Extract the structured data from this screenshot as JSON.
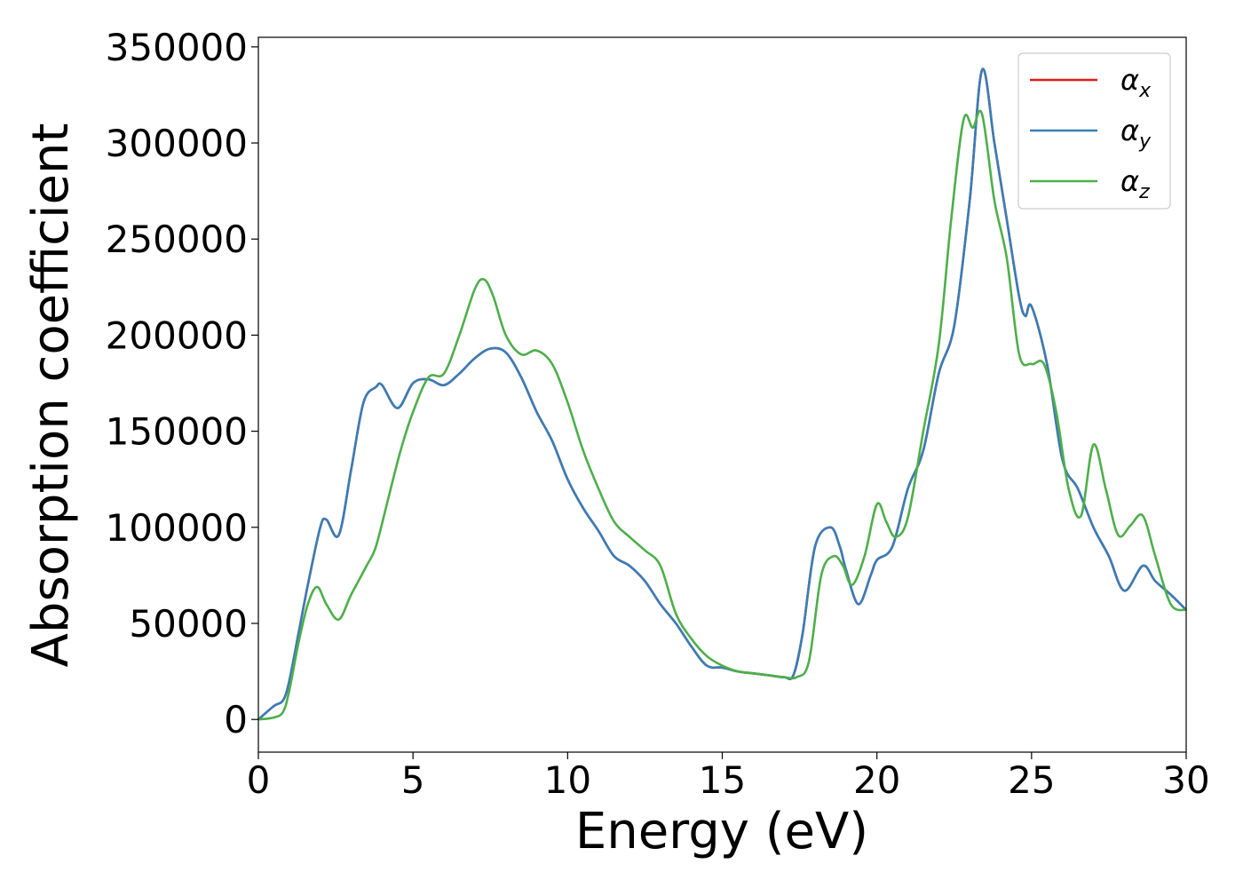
{
  "chart_data": {
    "type": "line",
    "xlabel": "Energy (eV)",
    "ylabel": "Absorption coefficient",
    "xlim": [
      0,
      30
    ],
    "ylim": [
      -17000,
      355000
    ],
    "xticks": [
      0,
      5,
      10,
      15,
      20,
      25,
      30
    ],
    "yticks": [
      0,
      50000,
      100000,
      150000,
      200000,
      250000,
      300000,
      350000
    ],
    "grid": false,
    "legend_position": "top-right",
    "series": [
      {
        "name": "α_x",
        "color": "#e41a1c",
        "x": [
          0,
          0.5,
          0.8,
          1.0,
          1.3,
          1.6,
          2.0,
          2.2,
          2.6,
          3.0,
          3.4,
          3.8,
          4.0,
          4.5,
          5.0,
          5.5,
          6.0,
          6.5,
          7.0,
          7.5,
          8.0,
          8.5,
          9.0,
          9.5,
          10.0,
          10.5,
          11.0,
          11.5,
          12.0,
          12.5,
          13.0,
          13.5,
          14.0,
          14.5,
          15.0,
          15.5,
          16.0,
          16.5,
          17.0,
          17.3,
          17.6,
          18.0,
          18.5,
          18.8,
          19.0,
          19.4,
          19.8,
          20.0,
          20.5,
          21.0,
          21.5,
          22.0,
          22.5,
          23.0,
          23.4,
          23.8,
          24.2,
          24.6,
          24.8,
          25.0,
          25.5,
          26.0,
          26.5,
          27.0,
          27.5,
          28.0,
          28.6,
          29.0,
          29.5,
          30.0
        ],
        "y": [
          0,
          7000,
          10000,
          20000,
          45000,
          70000,
          100000,
          104000,
          96000,
          130000,
          165000,
          173000,
          174000,
          162000,
          175000,
          177000,
          174000,
          180000,
          188000,
          193000,
          191000,
          178000,
          160000,
          145000,
          125000,
          110000,
          98000,
          85000,
          80000,
          72000,
          60000,
          50000,
          38000,
          28000,
          27000,
          25000,
          24000,
          23000,
          22000,
          23000,
          45000,
          90000,
          100000,
          90000,
          78000,
          60000,
          75000,
          83000,
          90000,
          120000,
          140000,
          180000,
          205000,
          270000,
          338000,
          300000,
          260000,
          220000,
          210000,
          215000,
          185000,
          135000,
          120000,
          100000,
          85000,
          67000,
          80000,
          72000,
          65000,
          57000
        ]
      },
      {
        "name": "α_y",
        "color": "#377eb8",
        "x": [
          0,
          0.5,
          0.8,
          1.0,
          1.3,
          1.6,
          2.0,
          2.2,
          2.6,
          3.0,
          3.4,
          3.8,
          4.0,
          4.5,
          5.0,
          5.5,
          6.0,
          6.5,
          7.0,
          7.5,
          8.0,
          8.5,
          9.0,
          9.5,
          10.0,
          10.5,
          11.0,
          11.5,
          12.0,
          12.5,
          13.0,
          13.5,
          14.0,
          14.5,
          15.0,
          15.5,
          16.0,
          16.5,
          17.0,
          17.3,
          17.6,
          18.0,
          18.5,
          18.8,
          19.0,
          19.4,
          19.8,
          20.0,
          20.5,
          21.0,
          21.5,
          22.0,
          22.5,
          23.0,
          23.4,
          23.8,
          24.2,
          24.6,
          24.8,
          25.0,
          25.5,
          26.0,
          26.5,
          27.0,
          27.5,
          28.0,
          28.6,
          29.0,
          29.5,
          30.0
        ],
        "y": [
          0,
          7000,
          10000,
          20000,
          45000,
          70000,
          100000,
          104000,
          96000,
          130000,
          165000,
          173000,
          174000,
          162000,
          175000,
          177000,
          174000,
          180000,
          188000,
          193000,
          191000,
          178000,
          160000,
          145000,
          125000,
          110000,
          98000,
          85000,
          80000,
          72000,
          60000,
          50000,
          38000,
          28000,
          27000,
          25000,
          24000,
          23000,
          22000,
          23000,
          45000,
          90000,
          100000,
          90000,
          78000,
          60000,
          75000,
          83000,
          90000,
          120000,
          140000,
          180000,
          205000,
          270000,
          338000,
          300000,
          260000,
          220000,
          210000,
          215000,
          185000,
          135000,
          120000,
          100000,
          85000,
          67000,
          80000,
          72000,
          65000,
          57000
        ]
      },
      {
        "name": "α_z",
        "color": "#4daf4a",
        "x": [
          0,
          0.5,
          0.8,
          1.0,
          1.3,
          1.6,
          1.9,
          2.2,
          2.6,
          3.0,
          3.5,
          3.8,
          4.2,
          4.6,
          5.0,
          5.5,
          6.0,
          6.5,
          7.0,
          7.3,
          7.6,
          8.0,
          8.5,
          9.0,
          9.5,
          10.0,
          10.5,
          11.0,
          11.5,
          12.0,
          12.5,
          13.0,
          13.5,
          14.0,
          14.5,
          15.0,
          15.5,
          16.0,
          16.5,
          17.0,
          17.4,
          17.8,
          18.2,
          18.6,
          18.9,
          19.2,
          19.6,
          20.0,
          20.3,
          20.6,
          21.0,
          21.5,
          22.0,
          22.4,
          22.8,
          23.1,
          23.4,
          23.8,
          24.2,
          24.6,
          25.0,
          25.4,
          25.8,
          26.2,
          26.6,
          27.0,
          27.4,
          27.8,
          28.2,
          28.6,
          29.0,
          29.5,
          30.0
        ],
        "y": [
          0,
          1000,
          4000,
          15000,
          40000,
          60000,
          69000,
          60000,
          52000,
          65000,
          80000,
          90000,
          115000,
          140000,
          160000,
          178000,
          180000,
          200000,
          224000,
          229000,
          220000,
          200000,
          190000,
          192000,
          185000,
          165000,
          140000,
          120000,
          103000,
          95000,
          88000,
          80000,
          55000,
          42000,
          33000,
          28000,
          25000,
          24000,
          23000,
          22000,
          22000,
          30000,
          75000,
          85000,
          80000,
          70000,
          85000,
          112000,
          103000,
          95000,
          105000,
          150000,
          195000,
          260000,
          312000,
          308000,
          315000,
          270000,
          240000,
          190000,
          185000,
          185000,
          160000,
          120000,
          106000,
          143000,
          120000,
          96000,
          101000,
          106000,
          85000,
          60000,
          57000
        ]
      }
    ]
  }
}
